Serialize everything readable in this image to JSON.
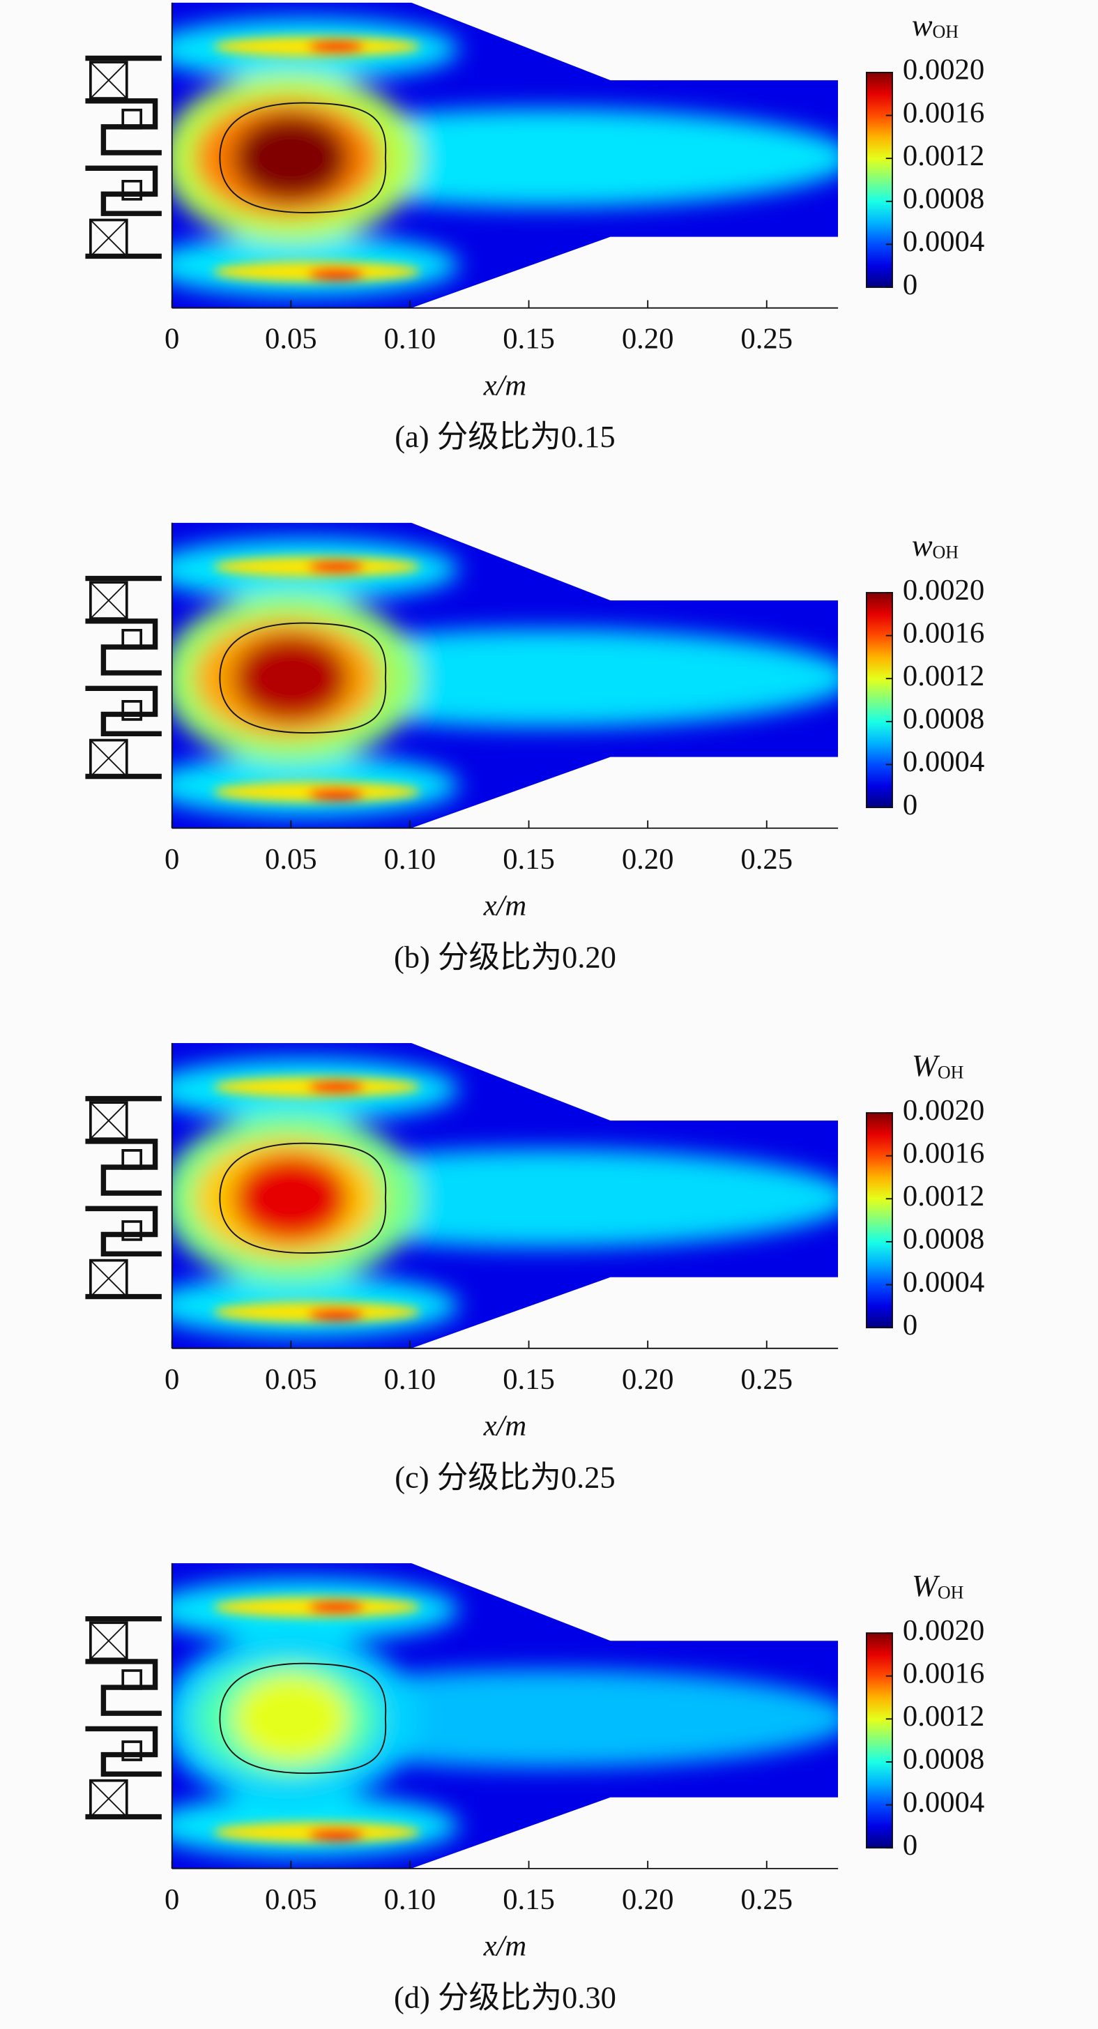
{
  "chart_data": [
    {
      "type": "contour",
      "title": "(a) 分级比为0.15",
      "xlabel": "x/m",
      "colorbar_label": {
        "symbol": "w",
        "subscript": "OH"
      },
      "colormap": "jet",
      "peak": 0.002,
      "xlim": [
        0,
        0.28
      ],
      "xticks": [
        0,
        0.05,
        {
          "value": 0.1,
          "label": "0.10"
        },
        0.15,
        {
          "value": 0.2,
          "label": "0.20"
        },
        0.25
      ],
      "zlim": [
        0,
        0.002
      ],
      "zticks": [
        0,
        0.0004,
        0.0008,
        0.0012,
        0.0016,
        {
          "value": 0.002,
          "label": "0.0020"
        }
      ]
    },
    {
      "type": "contour",
      "title": "(b) 分级比为0.20",
      "xlabel": "x/m",
      "colorbar_label": {
        "symbol": "w",
        "subscript": "OH"
      },
      "colormap": "jet",
      "peak": 0.0019,
      "xlim": [
        0,
        0.28
      ],
      "xticks": [
        0,
        0.05,
        {
          "value": 0.1,
          "label": "0.10"
        },
        0.15,
        {
          "value": 0.2,
          "label": "0.20"
        },
        0.25
      ],
      "zlim": [
        0,
        0.002
      ],
      "zticks": [
        0,
        0.0004,
        0.0008,
        0.0012,
        0.0016,
        {
          "value": 0.002,
          "label": "0.0020"
        }
      ]
    },
    {
      "type": "contour",
      "title": "(c) 分级比为0.25",
      "xlabel": "x/m",
      "colorbar_label": {
        "symbol": "W",
        "subscript": "OH"
      },
      "colormap": "jet",
      "peak": 0.0018,
      "xlim": [
        0,
        0.28
      ],
      "xticks": [
        0,
        0.05,
        {
          "value": 0.1,
          "label": "0.10"
        },
        0.15,
        {
          "value": 0.2,
          "label": "0.20"
        },
        0.25
      ],
      "zlim": [
        0,
        0.002
      ],
      "zticks": [
        0,
        0.0004,
        0.0008,
        0.0012,
        0.0016,
        {
          "value": 0.002,
          "label": "0.0020"
        }
      ]
    },
    {
      "type": "contour",
      "title": "(d) 分级比为0.30",
      "xlabel": "x/m",
      "colorbar_label": {
        "symbol": "W",
        "subscript": "OH"
      },
      "colormap": "jet",
      "peak": 0.0012,
      "xlim": [
        0,
        0.28
      ],
      "xticks": [
        0,
        0.05,
        {
          "value": 0.1,
          "label": "0.10"
        },
        0.15,
        {
          "value": 0.2,
          "label": "0.20"
        },
        0.25
      ],
      "zlim": [
        0,
        0.002
      ],
      "zticks": [
        0,
        0.0004,
        0.0008,
        0.0012,
        0.0016,
        {
          "value": 0.002,
          "label": "0.0020"
        }
      ]
    }
  ]
}
